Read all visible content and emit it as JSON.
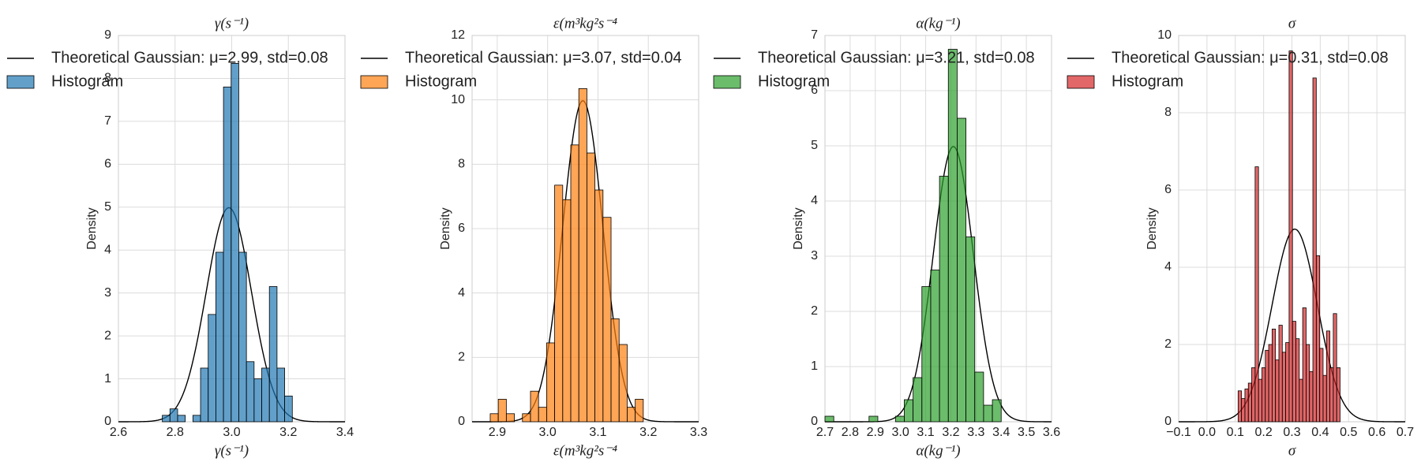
{
  "chart_data": [
    {
      "type": "histogram",
      "title": "γ(s⁻¹)",
      "xlabel": "γ(s⁻¹)",
      "ylabel": "Density",
      "xlim": [
        2.6,
        3.4
      ],
      "xticks": [
        2.6,
        2.8,
        {
          "value": 3.0,
          "label": "3.0"
        },
        3.2,
        3.4
      ],
      "ylim": [
        0,
        9
      ],
      "yticks": [
        0,
        1,
        2,
        3,
        4,
        5,
        6,
        7,
        8,
        9
      ],
      "grid": true,
      "bins": [
        2.755,
        2.782,
        2.809,
        2.836,
        2.863,
        2.89,
        2.917,
        2.944,
        2.971,
        2.998,
        3.025,
        3.052,
        3.079,
        3.106,
        3.133,
        3.16,
        3.187,
        3.214
      ],
      "series": [
        {
          "name": "Theoretical Gaussian: μ=2.99, std=0.08",
          "type": "gaussian",
          "mu": 2.99,
          "std": 0.08,
          "color": "#000000"
        },
        {
          "name": "Histogram",
          "color": "#1f77b4",
          "values": [
            0.15,
            0.3,
            0.15,
            0,
            0.15,
            1.25,
            2.5,
            3.95,
            7.8,
            8.35,
            3.95,
            1.4,
            1.0,
            1.25,
            3.15,
            1.25,
            0.6
          ]
        }
      ]
    },
    {
      "type": "histogram",
      "title": "ε(m³kg²s⁻⁴",
      "xlabel": "ε(m³kg²s⁻⁴",
      "ylabel": "Density",
      "xlim": [
        2.85,
        3.3
      ],
      "xticks": [
        2.9,
        {
          "value": 3.0,
          "label": "3.0"
        },
        3.1,
        3.2,
        3.3
      ],
      "ylim": [
        0,
        12
      ],
      "yticks": [
        0,
        2,
        4,
        6,
        8,
        10,
        12
      ],
      "grid": true,
      "bins": [
        2.886,
        2.902,
        2.918,
        2.934,
        2.95,
        2.966,
        2.982,
        2.998,
        3.014,
        3.03,
        3.046,
        3.062,
        3.078,
        3.094,
        3.11,
        3.126,
        3.142,
        3.158,
        3.174,
        3.19
      ],
      "series": [
        {
          "name": "Theoretical Gaussian: μ=3.07, std=0.04",
          "type": "gaussian",
          "mu": 3.07,
          "std": 0.04,
          "color": "#000000"
        },
        {
          "name": "Histogram",
          "color": "#ff7f0e",
          "values": [
            0.25,
            0.7,
            0.25,
            0,
            0.25,
            0.95,
            0.45,
            2.45,
            7.35,
            6.9,
            8.6,
            10.35,
            8.35,
            7.2,
            6.35,
            3.2,
            2.4,
            0.45,
            0.7
          ]
        }
      ]
    },
    {
      "type": "histogram",
      "title": "α(kg⁻¹)",
      "xlabel": "α(kg⁻¹)",
      "ylabel": "Density",
      "xlim": [
        2.7,
        3.6
      ],
      "xticks": [
        2.7,
        2.8,
        2.9,
        {
          "value": 3.0,
          "label": "3.0"
        },
        3.1,
        3.2,
        3.3,
        3.4,
        3.5,
        3.6
      ],
      "ylim": [
        0,
        7
      ],
      "yticks": [
        0,
        1,
        2,
        3,
        4,
        5,
        6,
        7
      ],
      "grid": true,
      "bins": [
        2.7,
        2.735,
        2.77,
        2.805,
        2.84,
        2.875,
        2.91,
        2.945,
        2.98,
        3.015,
        3.05,
        3.085,
        3.12,
        3.155,
        3.19,
        3.225,
        3.26,
        3.295,
        3.33,
        3.365,
        3.4
      ],
      "series": [
        {
          "name": "Theoretical Gaussian: μ=3.21, std=0.08",
          "type": "gaussian",
          "mu": 3.21,
          "std": 0.08,
          "color": "#000000"
        },
        {
          "name": "Histogram",
          "color": "#2ca02c",
          "values": [
            0.1,
            0,
            0,
            0,
            0,
            0.1,
            0,
            0,
            0.1,
            0.4,
            0.8,
            2.45,
            2.75,
            4.45,
            6.75,
            5.5,
            3.35,
            0.9,
            0.3,
            0.4
          ]
        }
      ]
    },
    {
      "type": "histogram",
      "title": "σ",
      "xlabel": "σ",
      "ylabel": "Density",
      "xlim": [
        -0.1,
        0.7
      ],
      "xticks": [
        {
          "value": -0.1,
          "label": "−0.1"
        },
        {
          "value": 0,
          "label": "0.0"
        },
        0.1,
        0.2,
        0.3,
        0.4,
        0.5,
        0.6,
        0.7
      ],
      "ylim": [
        0,
        10
      ],
      "yticks": [
        0,
        2,
        4,
        6,
        8,
        10
      ],
      "grid": true,
      "bins": [
        0.11,
        0.122,
        0.134,
        0.146,
        0.158,
        0.17,
        0.182,
        0.194,
        0.206,
        0.218,
        0.23,
        0.242,
        0.254,
        0.266,
        0.278,
        0.29,
        0.302,
        0.314,
        0.326,
        0.338,
        0.35,
        0.362,
        0.374,
        0.386,
        0.398,
        0.41,
        0.422,
        0.434,
        0.446,
        0.458,
        0.47
      ],
      "series": [
        {
          "name": "Theoretical Gaussian: μ=0.31, std=0.08",
          "type": "gaussian",
          "mu": 0.31,
          "std": 0.08,
          "color": "#000000"
        },
        {
          "name": "Histogram",
          "color": "#d62728",
          "values": [
            0.8,
            0.6,
            0.85,
            1.0,
            1.4,
            6.6,
            1.1,
            1.4,
            1.85,
            2.0,
            2.4,
            1.6,
            2.5,
            1.8,
            2.05,
            9.6,
            2.6,
            2.15,
            1.1,
            2.95,
            2.0,
            1.3,
            8.9,
            4.3,
            1.9,
            1.2,
            2.35,
            1.4,
            2.8,
            1.4
          ]
        }
      ]
    }
  ]
}
